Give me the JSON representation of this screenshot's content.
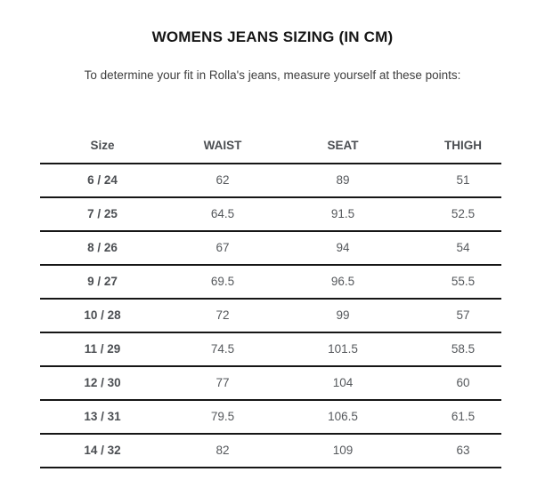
{
  "page": {
    "title": "WOMENS JEANS SIZING (IN CM)",
    "subtitle": "To determine your fit in Rolla's jeans, measure yourself at these points:"
  },
  "table": {
    "columns": [
      "Size",
      "WAIST",
      "SEAT",
      "THIGH"
    ],
    "rows": [
      {
        "cells": [
          "6 / 24",
          "62",
          "89",
          "51"
        ]
      },
      {
        "cells": [
          "7 / 25",
          "64.5",
          "91.5",
          "52.5"
        ]
      },
      {
        "cells": [
          "8 / 26",
          "67",
          "94",
          "54"
        ]
      },
      {
        "cells": [
          "9 / 27",
          "69.5",
          "96.5",
          "55.5"
        ]
      },
      {
        "cells": [
          "10 / 28",
          "72",
          "99",
          "57"
        ]
      },
      {
        "cells": [
          "11 / 29",
          "74.5",
          "101.5",
          "58.5"
        ]
      },
      {
        "cells": [
          "12 / 30",
          "77",
          "104",
          "60"
        ]
      },
      {
        "cells": [
          "13 / 31",
          "79.5",
          "106.5",
          "61.5"
        ]
      },
      {
        "cells": [
          "14 / 32",
          "82",
          "109",
          "63"
        ]
      }
    ]
  },
  "colors": {
    "title": "#161616",
    "subtitle": "#3e3e3e",
    "header_text": "#4b4e52",
    "value_text": "#55585c",
    "rule_line": "#161616"
  }
}
